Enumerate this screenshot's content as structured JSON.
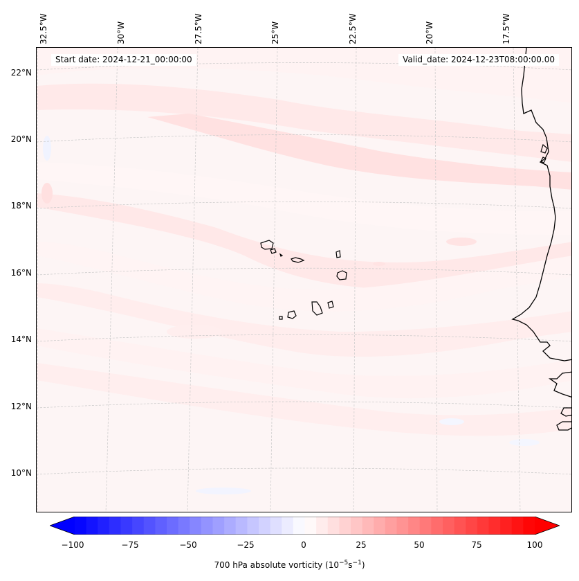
{
  "map": {
    "start_label": "Start date: 2024-12-21_00:00:00",
    "valid_label": "Valid_date: 2024-12-23T08:00:00.00",
    "lon_labels": [
      "32.5°W",
      "30°W",
      "27.5°W",
      "25°W",
      "22.5°W",
      "20°W",
      "17.5°W"
    ],
    "lat_labels": [
      "22°N",
      "20°N",
      "18°N",
      "16°N",
      "14°N",
      "12°N",
      "10°N"
    ],
    "extent": {
      "lon_min": -32.5,
      "lon_max": -16.0,
      "lat_min": 8.8,
      "lat_max": 22.7
    },
    "field": "700 hPa absolute vorticity",
    "gridlines": true
  },
  "colorbar": {
    "ticks": [
      "−100",
      "−75",
      "−50",
      "−25",
      "0",
      "25",
      "50",
      "75",
      "100"
    ],
    "label": "700 hPa absolute vorticity (10",
    "label_exp1": "−5",
    "label_mid": "s",
    "label_exp2": "−1",
    "label_end": ")",
    "vmin": -100,
    "vmax": 100,
    "colors": {
      "neg": "#0000ff",
      "mid": "#ffffff",
      "pos": "#ff0000"
    }
  },
  "colors": {
    "coast": "#000000",
    "grid": "#c8c8c8",
    "bands_light": "#ffe3e3",
    "bands_lighter": "#fff0f0"
  }
}
